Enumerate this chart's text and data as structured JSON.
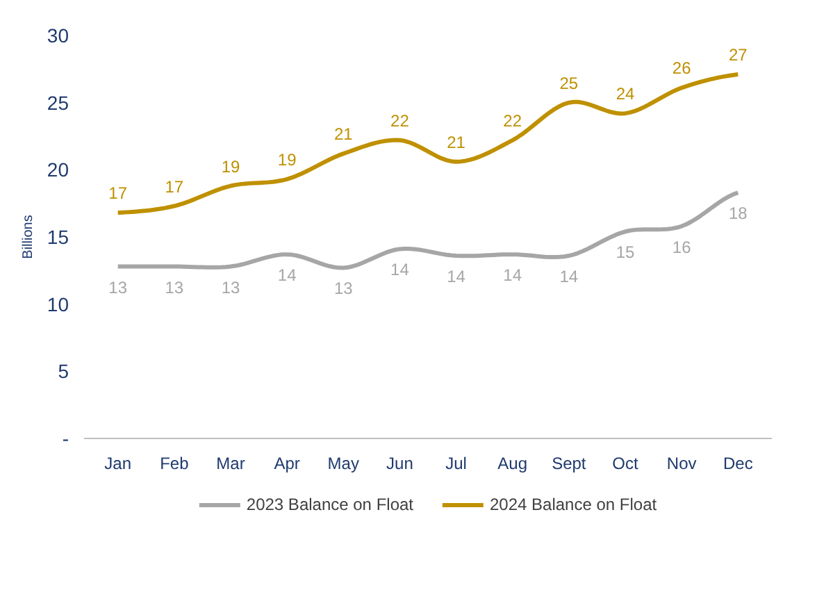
{
  "chart_data": {
    "type": "line",
    "ylabel": "Billions",
    "categories": [
      "Jan",
      "Feb",
      "Mar",
      "Apr",
      "May",
      "Jun",
      "Jul",
      "Aug",
      "Sept",
      "Oct",
      "Nov",
      "Dec"
    ],
    "series": [
      {
        "name": "2023 Balance on Float",
        "color": "#a6a6a6",
        "values": [
          12.8,
          12.8,
          12.8,
          13.7,
          12.7,
          14.1,
          13.6,
          13.7,
          13.6,
          15.4,
          15.8,
          18.3
        ],
        "value_labels": [
          "13",
          "13",
          "13",
          "14",
          "13",
          "14",
          "14",
          "14",
          "14",
          "15",
          "16",
          "18"
        ]
      },
      {
        "name": "2024 Balance on Float",
        "color": "#bf9000",
        "values": [
          16.8,
          17.3,
          18.8,
          19.3,
          21.2,
          22.2,
          20.6,
          22.2,
          25.0,
          24.2,
          26.1,
          27.1
        ],
        "value_labels": [
          "17",
          "17",
          "19",
          "19",
          "21",
          "22",
          "21",
          "22",
          "25",
          "24",
          "26",
          "27"
        ]
      }
    ],
    "ylim": [
      0,
      30
    ],
    "yticks": [
      {
        "value": 0,
        "label": "-"
      },
      5,
      10,
      15,
      20,
      25,
      30
    ],
    "grid": false,
    "legend": "bottom",
    "marker": "none",
    "line_style": "solid"
  }
}
